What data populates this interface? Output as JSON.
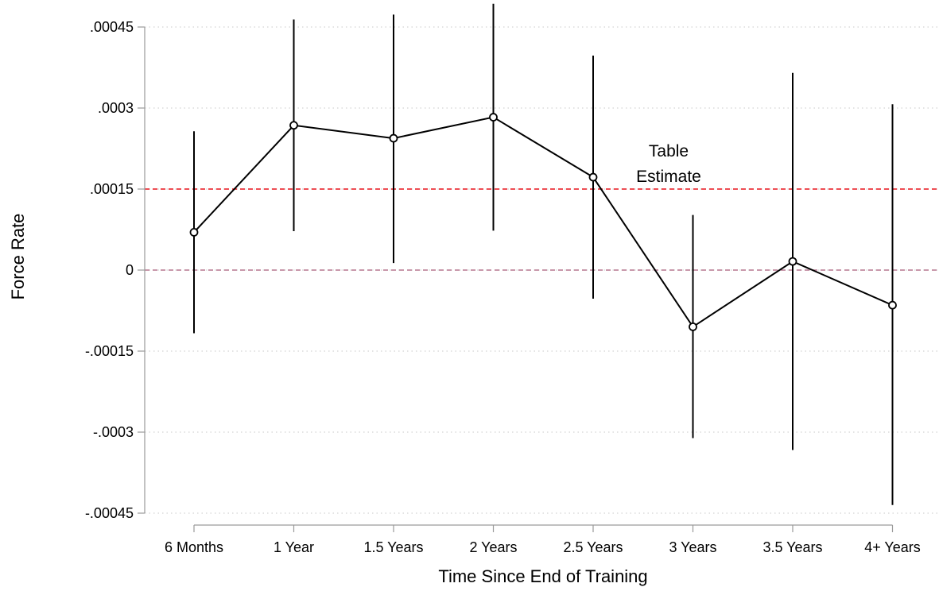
{
  "chart_data": {
    "type": "line",
    "title": "",
    "xlabel": "Time Since End of Training",
    "ylabel": "Force Rate",
    "categories": [
      "6 Months",
      "1 Year",
      "1.5 Years",
      "2 Years",
      "2.5 Years",
      "3 Years",
      "3.5 Years",
      "4+ Years"
    ],
    "ylim": [
      -0.00045,
      0.00045
    ],
    "yticks": [
      -0.00045,
      -0.0003,
      -0.00015,
      0,
      0.00015,
      0.0003,
      0.00045
    ],
    "ytick_labels": [
      "-.00045",
      "-.0003",
      "-.00015",
      "0",
      ".00015",
      ".0003",
      ".00045"
    ],
    "grid": "horizontal dotted",
    "series": [
      {
        "values": [
          7e-05,
          0.000268,
          0.000244,
          0.000283,
          0.000172,
          -0.000105,
          1.6e-05,
          -6.5e-05
        ],
        "ci_lower": [
          -0.000117,
          7.2e-05,
          1.3e-05,
          7.3e-05,
          -5.3e-05,
          -0.000311,
          -0.000333,
          -0.000435
        ],
        "ci_upper": [
          0.000257,
          0.000464,
          0.000473,
          0.000493,
          0.000397,
          0.000102,
          0.000365,
          0.000307
        ],
        "color": "#000000"
      }
    ],
    "reference_lines": [
      {
        "y": 0.00015,
        "color": "#e8141b",
        "style": "dashed",
        "label": "Table\nEstimate"
      },
      {
        "y": 0,
        "color": "#b5778f",
        "style": "dashed",
        "label": ""
      }
    ],
    "annotations": [
      {
        "text_line1": "Table",
        "text_line2": "Estimate"
      }
    ]
  }
}
